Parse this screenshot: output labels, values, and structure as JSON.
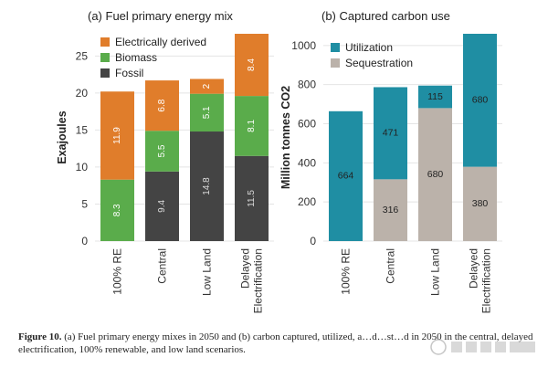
{
  "caption": {
    "label": "Figure 10.",
    "text": "(a) Fuel primary energy mixes in 2050 and (b) carbon captured, utilized, a…d…st…d in 2050 in the central, delayed electrification, 100% renewable, and low land scenarios."
  },
  "colors": {
    "electrically_derived": "#e07d2b",
    "biomass": "#5aac4b",
    "fossil": "#444444",
    "utilization": "#1f8ea3",
    "sequestration": "#bbb2aa"
  },
  "chart_data": [
    {
      "type": "bar",
      "title": "(a) Fuel primary energy mix",
      "ylabel": "Exajoules",
      "xlabel": "",
      "ylim": [
        0,
        28
      ],
      "yticks": [
        0,
        5,
        10,
        15,
        20,
        25
      ],
      "categories": [
        "100% RE",
        "Central",
        "Low Land",
        "Delayed Electrification"
      ],
      "series": [
        {
          "name": "Fossil",
          "color_key": "fossil",
          "values": [
            null,
            9.4,
            14.8,
            11.5
          ]
        },
        {
          "name": "Biomass",
          "color_key": "biomass",
          "values": [
            8.3,
            5.5,
            5.1,
            8.1
          ]
        },
        {
          "name": "Electrically derived",
          "color_key": "electrically_derived",
          "values": [
            11.9,
            6.8,
            2.0,
            8.4
          ]
        }
      ],
      "legend": [
        "Electrically derived",
        "Biomass",
        "Fossil"
      ],
      "legend_position": "top-left",
      "grid": true,
      "stacked": true
    },
    {
      "type": "bar",
      "title": "(b) Captured carbon use",
      "ylabel": "Million tonnes CO2",
      "xlabel": "",
      "ylim": [
        0,
        1060
      ],
      "yticks": [
        0,
        200,
        400,
        600,
        800,
        1000
      ],
      "categories": [
        "100% RE",
        "Central",
        "Low Land",
        "Delayed Electrification"
      ],
      "series": [
        {
          "name": "Sequestration",
          "color_key": "sequestration",
          "values": [
            0,
            316,
            680,
            380
          ]
        },
        {
          "name": "Utilization",
          "color_key": "utilization",
          "values": [
            664,
            471,
            115,
            680
          ]
        }
      ],
      "legend": [
        "Utilization",
        "Sequestration"
      ],
      "legend_position": "top-left",
      "grid": true,
      "stacked": true
    }
  ]
}
